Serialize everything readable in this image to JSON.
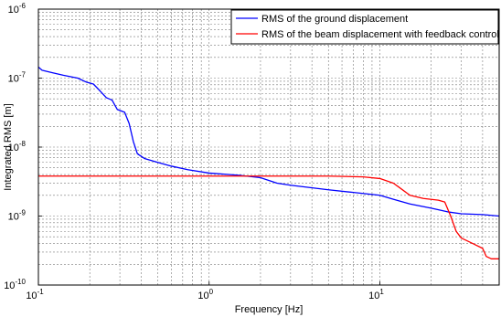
{
  "chart_data": {
    "type": "line",
    "title": "",
    "xlabel": "Frequency [Hz]",
    "ylabel": "Integrated RMS [m]",
    "xscale": "log",
    "yscale": "log",
    "xlim": [
      0.1,
      50
    ],
    "ylim": [
      1e-10,
      1e-06
    ],
    "grid": true,
    "legend_position": "top-right",
    "x_ticks": [
      {
        "value": 0.1,
        "base": "10",
        "exp": "-1"
      },
      {
        "value": 1,
        "base": "10",
        "exp": "0"
      },
      {
        "value": 10,
        "base": "10",
        "exp": "1"
      }
    ],
    "y_ticks": [
      {
        "value": 1e-10,
        "base": "10",
        "exp": "-10"
      },
      {
        "value": 1e-09,
        "base": "10",
        "exp": "-9"
      },
      {
        "value": 1e-08,
        "base": "10",
        "exp": "-8"
      },
      {
        "value": 1e-07,
        "base": "10",
        "exp": "-7"
      },
      {
        "value": 1e-06,
        "base": "10",
        "exp": "-6"
      }
    ],
    "series": [
      {
        "name": "RMS of the ground displacement",
        "color": "#0000ff",
        "points": [
          [
            0.1,
            1.45e-07
          ],
          [
            0.105,
            1.3e-07
          ],
          [
            0.12,
            1.2e-07
          ],
          [
            0.14,
            1.1e-07
          ],
          [
            0.17,
            1e-07
          ],
          [
            0.19,
            8.8e-08
          ],
          [
            0.21,
            8.2e-08
          ],
          [
            0.23,
            6.5e-08
          ],
          [
            0.25,
            5.2e-08
          ],
          [
            0.27,
            4.8e-08
          ],
          [
            0.29,
            3.5e-08
          ],
          [
            0.32,
            3.2e-08
          ],
          [
            0.34,
            2.2e-08
          ],
          [
            0.36,
            1.2e-08
          ],
          [
            0.38,
            8e-09
          ],
          [
            0.42,
            6.8e-09
          ],
          [
            0.5,
            6e-09
          ],
          [
            0.6,
            5.3e-09
          ],
          [
            0.75,
            4.7e-09
          ],
          [
            1.0,
            4.2e-09
          ],
          [
            1.5,
            3.9e-09
          ],
          [
            2.0,
            3.6e-09
          ],
          [
            2.5,
            3e-09
          ],
          [
            3.0,
            2.8e-09
          ],
          [
            5.0,
            2.4e-09
          ],
          [
            7.0,
            2.2e-09
          ],
          [
            10.0,
            2e-09
          ],
          [
            12.0,
            1.75e-09
          ],
          [
            15.0,
            1.5e-09
          ],
          [
            20.0,
            1.3e-09
          ],
          [
            25.0,
            1.15e-09
          ],
          [
            30.0,
            1.08e-09
          ],
          [
            40.0,
            1.05e-09
          ],
          [
            50.0,
            1e-09
          ]
        ]
      },
      {
        "name": "RMS of the beam displacement with feedback control",
        "color": "#ff0000",
        "points": [
          [
            0.1,
            3.8e-09
          ],
          [
            1.0,
            3.8e-09
          ],
          [
            5.0,
            3.8e-09
          ],
          [
            8.0,
            3.7e-09
          ],
          [
            10.0,
            3.5e-09
          ],
          [
            12.0,
            3e-09
          ],
          [
            13.0,
            2.6e-09
          ],
          [
            15.0,
            2e-09
          ],
          [
            18.0,
            1.8e-09
          ],
          [
            22.0,
            1.7e-09
          ],
          [
            24.0,
            1.6e-09
          ],
          [
            26.0,
            1e-09
          ],
          [
            28.0,
            6e-10
          ],
          [
            30.0,
            4.8e-10
          ],
          [
            35.0,
            4e-10
          ],
          [
            40.0,
            3.4e-10
          ],
          [
            42.0,
            2.6e-10
          ],
          [
            45.0,
            2.4e-10
          ],
          [
            50.0,
            2.4e-10
          ]
        ]
      }
    ]
  }
}
